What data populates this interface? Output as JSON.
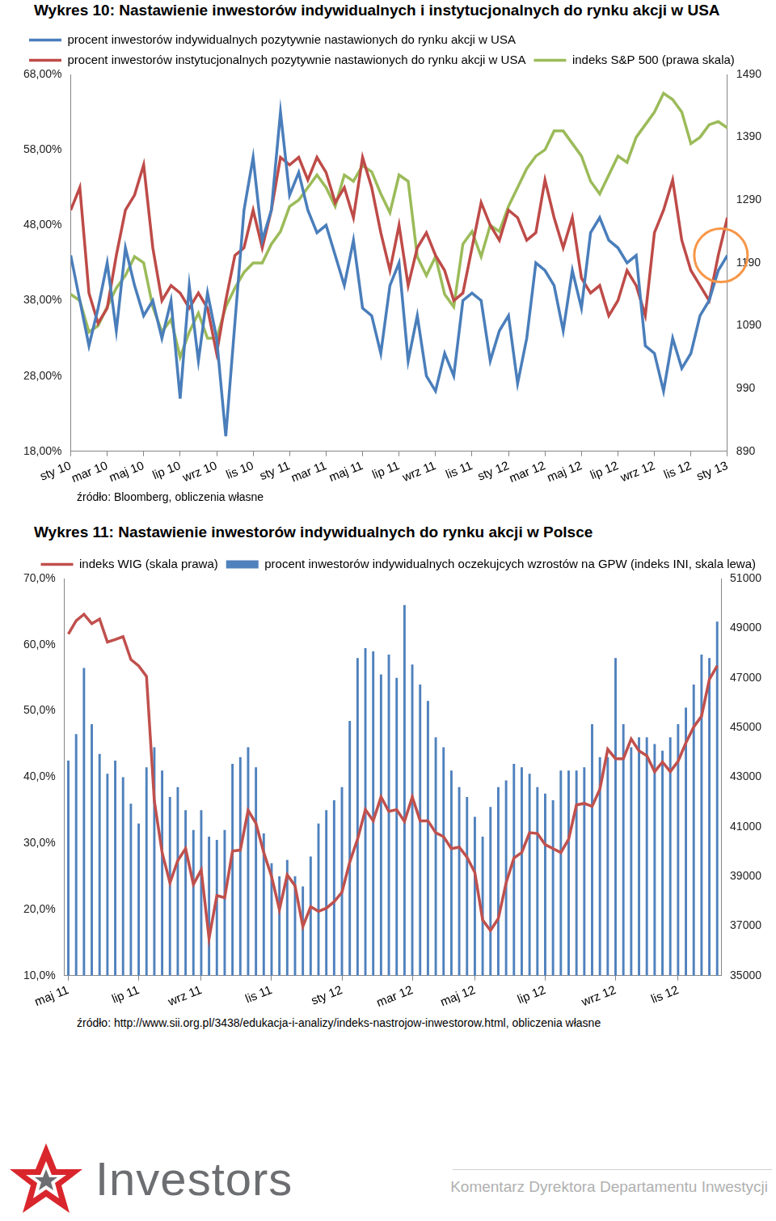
{
  "chart_data": [
    {
      "type": "line",
      "title": "Wykres 10: Nastawienie inwestorów indywidualnych i instytucjonalnych do rynku akcji w USA",
      "source": "źródło: Bloomberg, obliczenia własne",
      "categories": [
        "sty 10",
        null,
        null,
        null,
        "mar 10",
        null,
        null,
        null,
        "maj 10",
        null,
        null,
        null,
        "lip 10",
        null,
        null,
        null,
        "wrz 10",
        null,
        null,
        null,
        "lis 10",
        null,
        null,
        null,
        "sty 11",
        null,
        null,
        null,
        "mar 11",
        null,
        null,
        null,
        "maj 11",
        null,
        null,
        null,
        "lip 11",
        null,
        null,
        null,
        "wrz 11",
        null,
        null,
        null,
        "lis 11",
        null,
        null,
        null,
        "sty 12",
        null,
        null,
        null,
        "mar 12",
        null,
        null,
        null,
        "maj 12",
        null,
        null,
        null,
        "lip 12",
        null,
        null,
        null,
        "wrz 12",
        null,
        null,
        null,
        "lis 12",
        null,
        null,
        null,
        "sty 13"
      ],
      "series": [
        {
          "name": "procent inwestorów indywidualnych pozytywnie nastawionych do rynku akcji w USA",
          "color": "#4a7ebb",
          "values": [
            44,
            38,
            32,
            37,
            43,
            34,
            45,
            40,
            36,
            38,
            33,
            38,
            25,
            40,
            30,
            39,
            33,
            20,
            35,
            50,
            57,
            46,
            50,
            63,
            52,
            55,
            50,
            47,
            48,
            44,
            40,
            46,
            37,
            36,
            31,
            40,
            43,
            30,
            36,
            28,
            26,
            31,
            28,
            38,
            39,
            38,
            30,
            34,
            36,
            27,
            33,
            43,
            42,
            40,
            34,
            42,
            37,
            47,
            49,
            46,
            45,
            43,
            44,
            32,
            31,
            26,
            33,
            29,
            31,
            36,
            38,
            42,
            44
          ]
        },
        {
          "name": "procent inwestorów instytucjonalnych pozytywnie nastawionych do rynku akcji w USA",
          "color": "#be4b48",
          "values": [
            50,
            53,
            39,
            35,
            37,
            44,
            50,
            52,
            56,
            45,
            38,
            40,
            39,
            37,
            39,
            37,
            31,
            38,
            44,
            45,
            50,
            45,
            50,
            57,
            56,
            57,
            54,
            57,
            55,
            51,
            53,
            49,
            57,
            53,
            47,
            42,
            48,
            40,
            45,
            47,
            44,
            42,
            38,
            39,
            45,
            51,
            48,
            46,
            50,
            49,
            46,
            47,
            54,
            49,
            45,
            49,
            41,
            39,
            40,
            36,
            38,
            42,
            40,
            36,
            47,
            50,
            54,
            46,
            42,
            40,
            38,
            44,
            49
          ]
        },
        {
          "name": "indeks S&P 500 (prawa skala)",
          "color": "#9bbb59",
          "axis": "y2",
          "values": [
            1140,
            1130,
            1080,
            1090,
            1120,
            1150,
            1170,
            1200,
            1190,
            1120,
            1080,
            1100,
            1040,
            1080,
            1110,
            1070,
            1070,
            1120,
            1150,
            1175,
            1190,
            1190,
            1220,
            1240,
            1280,
            1290,
            1310,
            1330,
            1310,
            1280,
            1330,
            1320,
            1345,
            1335,
            1300,
            1270,
            1330,
            1320,
            1200,
            1170,
            1200,
            1140,
            1120,
            1220,
            1240,
            1200,
            1250,
            1240,
            1280,
            1310,
            1340,
            1360,
            1370,
            1400,
            1400,
            1380,
            1360,
            1320,
            1300,
            1330,
            1360,
            1350,
            1390,
            1410,
            1430,
            1460,
            1450,
            1430,
            1380,
            1390,
            1410,
            1415,
            1405
          ]
        }
      ],
      "ylim": [
        18,
        68
      ],
      "yticks": [
        {
          "value": 18,
          "label": "18,00%"
        },
        {
          "value": 28,
          "label": "28,00%"
        },
        {
          "value": 38,
          "label": "38,00%"
        },
        {
          "value": 48,
          "label": "48,00%"
        },
        {
          "value": 58,
          "label": "58,00%"
        },
        {
          "value": 68,
          "label": "68,00%"
        }
      ],
      "y2lim": [
        890,
        1490
      ],
      "y2ticks": [
        890,
        990,
        1090,
        1190,
        1290,
        1390,
        1490
      ],
      "grid": false,
      "legend": "top-left"
    },
    {
      "type": "bar",
      "title": "Wykres 11: Nastawienie inwestorów indywidualnych do rynku akcji w Polsce",
      "source": "źródło: http://www.sii.org.pl/3438/edukacja-i-analizy/indeks-nastrojow-inwestorow.html, obliczenia własne",
      "categories": [
        "maj 11",
        null,
        null,
        null,
        null,
        null,
        null,
        null,
        null,
        "lip 11",
        null,
        null,
        null,
        null,
        null,
        null,
        null,
        "wrz 11",
        null,
        null,
        null,
        null,
        null,
        null,
        null,
        null,
        "lis 11",
        null,
        null,
        null,
        null,
        null,
        null,
        null,
        null,
        "sty 12",
        null,
        null,
        null,
        null,
        null,
        null,
        null,
        null,
        "mar 12",
        null,
        null,
        null,
        null,
        null,
        null,
        null,
        "maj 12",
        null,
        null,
        null,
        null,
        null,
        null,
        null,
        null,
        "lip 12",
        null,
        null,
        null,
        null,
        null,
        null,
        null,
        null,
        "wrz 12",
        null,
        null,
        null,
        null,
        null,
        null,
        null,
        "lis 12",
        null,
        null,
        null,
        null,
        null
      ],
      "series": [
        {
          "name": "procent inwestorów indywidualnych oczekujcych wzrostów na GPW (indeks INI, skala lewa)",
          "color": "#4f81bd",
          "type": "bar",
          "values": [
            42.5,
            46.5,
            56.5,
            48,
            43.5,
            40.5,
            42.5,
            40,
            36,
            33,
            41.5,
            44.5,
            41,
            37,
            38.5,
            35,
            32,
            35,
            31,
            30.5,
            32,
            42,
            43,
            44.5,
            41.5,
            31.5,
            27,
            25,
            27.5,
            25,
            23.5,
            28,
            33,
            35,
            36.5,
            38.5,
            48.5,
            58,
            59.5,
            59,
            55.5,
            58.5,
            55,
            66,
            57,
            54,
            51.5,
            46,
            44.5,
            41,
            38.5,
            37,
            34,
            31,
            35.5,
            38.5,
            39.5,
            42,
            41.5,
            40.5,
            38.5,
            37.5,
            36.5,
            41,
            41,
            41,
            41.5,
            48,
            43,
            43,
            58,
            48,
            44.5,
            46,
            46,
            45,
            44,
            46,
            48,
            50.5,
            54,
            58.5,
            58,
            63.5
          ]
        },
        {
          "name": "indeks WIG (skala prawa)",
          "color": "#c0504d",
          "type": "line",
          "axis": "y2",
          "values": [
            48760,
            49300,
            49560,
            49180,
            49370,
            48440,
            48540,
            48660,
            47740,
            47480,
            47060,
            42040,
            39960,
            38740,
            39640,
            40120,
            38680,
            39260,
            36500,
            38230,
            38140,
            40020,
            40060,
            41660,
            41140,
            39960,
            39000,
            37660,
            39060,
            38620,
            36980,
            37780,
            37590,
            37720,
            37980,
            38360,
            39580,
            40500,
            41690,
            41240,
            42200,
            41620,
            41690,
            41210,
            42200,
            41240,
            41240,
            40760,
            40600,
            40120,
            40180,
            39770,
            39160,
            37240,
            36820,
            37300,
            38740,
            39740,
            39960,
            40760,
            40730,
            40280,
            40120,
            39960,
            40500,
            41880,
            41940,
            41820,
            42520,
            44120,
            43740,
            43740,
            44540,
            44060,
            43860,
            43220,
            43610,
            43220,
            43640,
            44380,
            45020,
            45460,
            46940,
            47480
          ]
        }
      ],
      "ylim": [
        10,
        70
      ],
      "yticks": [
        {
          "value": 10,
          "label": "10,0%"
        },
        {
          "value": 20,
          "label": "20,0%"
        },
        {
          "value": 30,
          "label": "30,0%"
        },
        {
          "value": 40,
          "label": "40,0%"
        },
        {
          "value": 50,
          "label": "50,0%"
        },
        {
          "value": 60,
          "label": "60,0%"
        },
        {
          "value": 70,
          "label": "70,0%"
        }
      ],
      "y2lim": [
        35000,
        51000
      ],
      "y2ticks": [
        35000,
        37000,
        39000,
        41000,
        43000,
        45000,
        47000,
        49000,
        51000
      ],
      "grid": false,
      "legend": "top-right"
    }
  ],
  "footer": {
    "logo": "Investors",
    "text": "Komentarz Dyrektora Departamentu Inwestycji"
  }
}
